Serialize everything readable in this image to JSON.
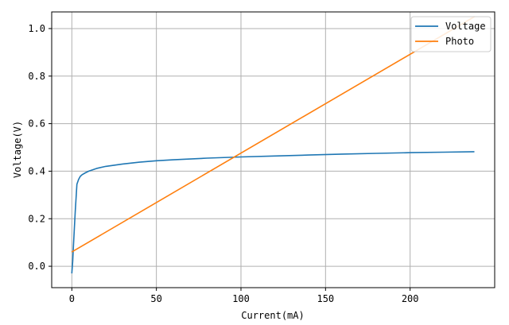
{
  "chart_data": {
    "type": "line",
    "title": "",
    "xlabel": "Current(mA)",
    "ylabel": "Voltage(V)",
    "xlim": [
      -11.9,
      250
    ],
    "ylim": [
      -0.09,
      1.07
    ],
    "xticks": [
      0,
      50,
      100,
      150,
      200
    ],
    "yticks": [
      0.0,
      0.2,
      0.4,
      0.6,
      0.8,
      1.0
    ],
    "xtick_labels": [
      "0",
      "50",
      "100",
      "150",
      "200"
    ],
    "ytick_labels": [
      "0.0",
      "0.2",
      "0.4",
      "0.6",
      "0.8",
      "1.0"
    ],
    "grid": true,
    "legend_position": "top-right",
    "series": [
      {
        "name": "Voltage",
        "color": "#1f77b4",
        "x": [
          0,
          0.5,
          1,
          1.5,
          2,
          3,
          4,
          5,
          6,
          8,
          10,
          15,
          20,
          30,
          40,
          50,
          60,
          80,
          100,
          120,
          140,
          160,
          180,
          200,
          220,
          238
        ],
        "y": [
          -0.03,
          0.02,
          0.09,
          0.16,
          0.23,
          0.345,
          0.365,
          0.378,
          0.385,
          0.393,
          0.4,
          0.412,
          0.42,
          0.43,
          0.438,
          0.444,
          0.448,
          0.455,
          0.46,
          0.464,
          0.468,
          0.472,
          0.475,
          0.478,
          0.48,
          0.482
        ]
      },
      {
        "name": "Photo",
        "color": "#ff7f0e",
        "x": [
          0,
          238
        ],
        "y": [
          0.06,
          1.05
        ]
      }
    ]
  }
}
